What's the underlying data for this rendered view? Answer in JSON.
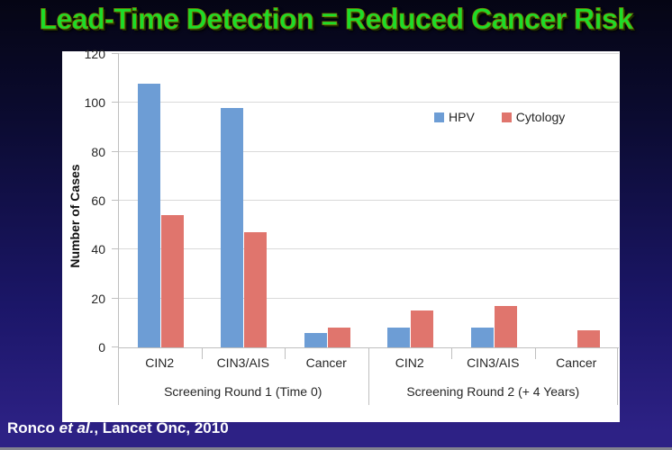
{
  "title": "Lead-Time Detection = Reduced Cancer Risk",
  "citation": {
    "author": "Ronco ",
    "etal": "et al.",
    "rest": ", Lancet Onc, 2010"
  },
  "colors": {
    "title_green": "#1CDD2A",
    "background_top": "#050514",
    "background_bottom": "#2D2185",
    "panel": "#FFFFFF",
    "gridline": "#D9D9D9",
    "axis": "#BFBFBF",
    "text": "#262626",
    "citation_text": "#FFFFFF",
    "bottom_rule": "#82828F"
  },
  "chart_data": {
    "type": "bar",
    "title": "",
    "xlabel": "",
    "ylabel": "Number of Cases",
    "ylim": [
      0,
      120
    ],
    "yticks": [
      0,
      20,
      40,
      60,
      80,
      100,
      120
    ],
    "grid": true,
    "legend_position": "inside top-right",
    "categories": [
      "CIN2",
      "CIN3/AIS",
      "Cancer",
      "CIN2",
      "CIN3/AIS",
      "Cancer"
    ],
    "group_labels": [
      "Screening Round 1 (Time 0)",
      "Screening Round 2 (+ 4 Years)"
    ],
    "categories_per_group": 3,
    "series": [
      {
        "name": "HPV",
        "color": "#6D9DD5",
        "values": [
          108,
          98,
          6,
          8,
          8,
          0
        ]
      },
      {
        "name": "Cytology",
        "color": "#E0756D",
        "values": [
          54,
          47,
          8,
          15,
          17,
          7
        ]
      }
    ]
  }
}
